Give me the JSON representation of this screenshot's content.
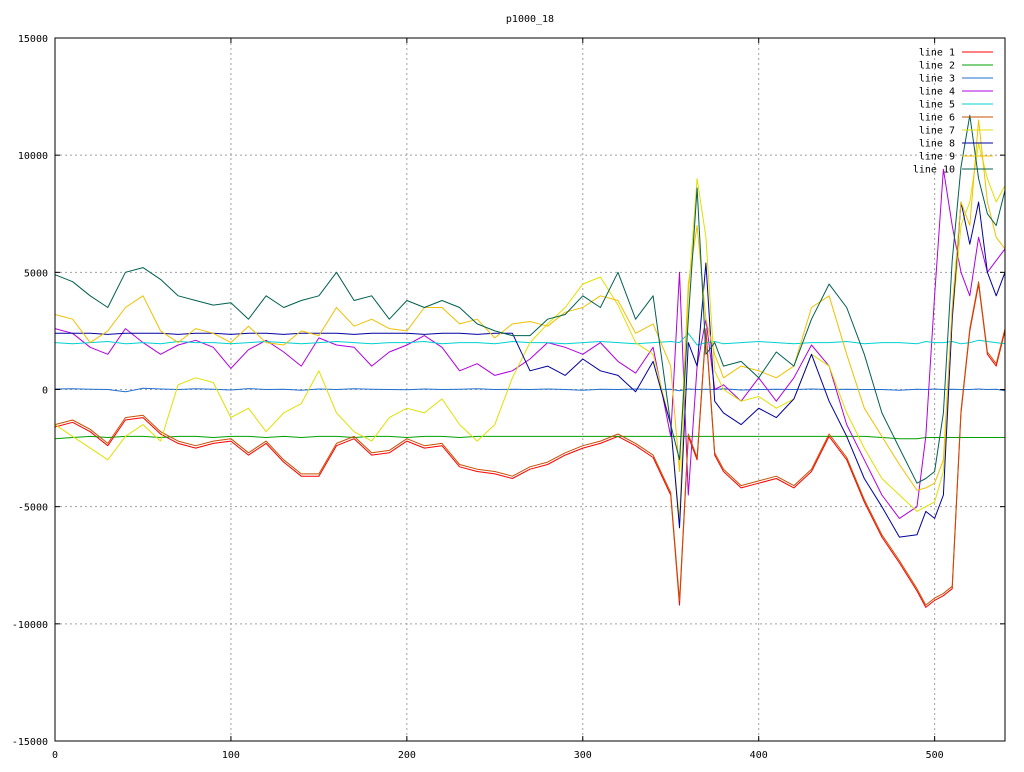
{
  "chart_data": {
    "type": "line",
    "title": "p1000_18",
    "xlabel": "",
    "ylabel": "",
    "xlim": [
      0,
      540
    ],
    "ylim": [
      -15000,
      15000
    ],
    "grid": true,
    "legend_position": "top-right",
    "x_ticks": [
      "0",
      "100",
      "200",
      "300",
      "400",
      "500"
    ],
    "x_tick_values": [
      0,
      100,
      200,
      300,
      400,
      500
    ],
    "y_ticks": [
      "-15000",
      "-10000",
      "-5000",
      "0",
      "5000",
      "10000",
      "15000"
    ],
    "y_tick_values": [
      -15000,
      -10000,
      -5000,
      0,
      5000,
      10000,
      15000
    ],
    "x": [
      0,
      10,
      20,
      30,
      40,
      50,
      60,
      70,
      80,
      90,
      100,
      110,
      120,
      130,
      140,
      150,
      160,
      170,
      180,
      190,
      200,
      210,
      220,
      230,
      240,
      250,
      260,
      270,
      280,
      290,
      300,
      310,
      320,
      330,
      340,
      350,
      355,
      360,
      365,
      370,
      375,
      380,
      390,
      400,
      410,
      420,
      430,
      440,
      450,
      460,
      470,
      480,
      490,
      495,
      500,
      505,
      510,
      515,
      520,
      525,
      530,
      535,
      540
    ],
    "series": [
      {
        "name": "line 1",
        "color": "#ff0000",
        "values": [
          -1600,
          -1400,
          -1800,
          -2400,
          -1300,
          -1200,
          -1900,
          -2300,
          -2500,
          -2300,
          -2200,
          -2800,
          -2300,
          -3100,
          -3700,
          -3700,
          -2400,
          -2100,
          -2800,
          -2700,
          -2200,
          -2500,
          -2400,
          -3300,
          -3500,
          -3600,
          -3800,
          -3400,
          -3200,
          -2800,
          -2500,
          -2300,
          -2000,
          -2400,
          -2900,
          -4500,
          -9200,
          -2000,
          -3000,
          2500,
          -2800,
          -3500,
          -4200,
          -4000,
          -3800,
          -4200,
          -3500,
          -2000,
          -3000,
          -4800,
          -6300,
          -7400,
          -8600,
          -9300,
          -9000,
          -8800,
          -8500,
          -1000,
          2500,
          4500,
          1500,
          1000,
          2500
        ]
      },
      {
        "name": "line 2",
        "color": "#00a000",
        "values": [
          -2100,
          -2050,
          -2000,
          -2050,
          -2000,
          -2000,
          -2050,
          -2000,
          -2000,
          -2050,
          -2000,
          -2000,
          -2050,
          -2000,
          -2050,
          -2000,
          -2000,
          -2050,
          -2000,
          -2000,
          -2050,
          -2000,
          -2000,
          -2050,
          -2000,
          -2000,
          -2000,
          -2000,
          -2000,
          -2000,
          -2000,
          -2000,
          -2000,
          -2000,
          -2000,
          -2000,
          -2000,
          -2000,
          -2000,
          -2000,
          -2000,
          -2000,
          -2000,
          -2000,
          -2000,
          -2000,
          -2000,
          -2000,
          -2000,
          -2000,
          -2050,
          -2100,
          -2100,
          -2050,
          -2050,
          -2050,
          -2050,
          -2050,
          -2050,
          -2050,
          -2050,
          -2050,
          -2050
        ]
      },
      {
        "name": "line 3",
        "color": "#1f6fd0",
        "values": [
          20,
          30,
          10,
          0,
          -100,
          50,
          20,
          0,
          30,
          10,
          -20,
          40,
          0,
          10,
          -30,
          20,
          0,
          30,
          10,
          0,
          -10,
          20,
          0,
          10,
          30,
          0,
          10,
          0,
          20,
          0,
          -30,
          10,
          0,
          20,
          0,
          10,
          -50,
          20,
          0,
          10,
          0,
          30,
          -20,
          0,
          10,
          0,
          20,
          0,
          10,
          0,
          0,
          -30,
          10,
          0,
          20,
          0,
          10,
          0,
          0,
          20,
          0,
          10,
          -50
        ]
      },
      {
        "name": "line 4",
        "color": "#b000e0",
        "values": [
          2600,
          2400,
          1800,
          1500,
          2600,
          2000,
          1500,
          1900,
          2100,
          1800,
          900,
          1700,
          2100,
          1600,
          1000,
          2200,
          1900,
          1800,
          1000,
          1600,
          1900,
          2300,
          1800,
          800,
          1100,
          600,
          800,
          1300,
          2000,
          1800,
          1500,
          2000,
          1200,
          700,
          1800,
          -2000,
          5000,
          -4500,
          1000,
          3000,
          0,
          200,
          -500,
          500,
          -500,
          500,
          1900,
          1000,
          -1500,
          -3000,
          -4500,
          -5500,
          -5000,
          -2000,
          4000,
          9400,
          7000,
          5000,
          4000,
          6500,
          5000,
          5500,
          6000
        ]
      },
      {
        "name": "line 5",
        "color": "#00d0d0",
        "values": [
          2000,
          1950,
          2000,
          2050,
          1950,
          2000,
          1950,
          2050,
          2000,
          2000,
          1950,
          2000,
          2050,
          2000,
          1950,
          2000,
          2050,
          2000,
          1950,
          2000,
          2000,
          2050,
          1950,
          2000,
          2000,
          1950,
          2050,
          2000,
          2000,
          1950,
          2000,
          2050,
          2000,
          1950,
          2000,
          2050,
          2000,
          2400,
          1900,
          2000,
          2050,
          1950,
          2000,
          2050,
          2000,
          1950,
          2000,
          2000,
          2050,
          1950,
          2000,
          2000,
          1950,
          2050,
          2000,
          2000,
          2050,
          1950,
          2000,
          2100,
          2050,
          2000,
          1950
        ]
      },
      {
        "name": "line 6",
        "color": "#c85000",
        "values": [
          -1500,
          -1300,
          -1700,
          -2300,
          -1200,
          -1100,
          -1800,
          -2200,
          -2400,
          -2200,
          -2100,
          -2700,
          -2200,
          -3000,
          -3600,
          -3600,
          -2300,
          -2000,
          -2700,
          -2600,
          -2100,
          -2400,
          -2300,
          -3200,
          -3400,
          -3500,
          -3700,
          -3300,
          -3100,
          -2700,
          -2400,
          -2200,
          -1900,
          -2300,
          -2800,
          -4400,
          -9000,
          -1900,
          -2900,
          2600,
          -2700,
          -3400,
          -4100,
          -3900,
          -3700,
          -4100,
          -3400,
          -1900,
          -2900,
          -4700,
          -6200,
          -7300,
          -8500,
          -9200,
          -8900,
          -8700,
          -8400,
          -900,
          2600,
          4600,
          1600,
          1100,
          2600
        ]
      },
      {
        "name": "line 7",
        "color": "#e0e000",
        "values": [
          -1500,
          -2000,
          -2500,
          -3000,
          -2000,
          -1500,
          -2200,
          200,
          500,
          300,
          -1200,
          -800,
          -1800,
          -1000,
          -600,
          800,
          -1000,
          -1800,
          -2200,
          -1200,
          -800,
          -1000,
          -400,
          -1500,
          -2200,
          -1500,
          500,
          2000,
          2800,
          3500,
          4500,
          4800,
          3600,
          2000,
          1500,
          -1500,
          -5600,
          4000,
          9000,
          6500,
          800,
          0,
          -500,
          -300,
          -800,
          -400,
          1500,
          1000,
          -1000,
          -2500,
          -3800,
          -4500,
          -5200,
          -5000,
          -4800,
          -3500,
          3000,
          7000,
          8000,
          10500,
          9000,
          8000,
          8700
        ]
      },
      {
        "name": "line 8",
        "color": "#0000a0",
        "values": [
          2400,
          2400,
          2400,
          2350,
          2400,
          2400,
          2400,
          2350,
          2400,
          2400,
          2350,
          2400,
          2400,
          2350,
          2400,
          2400,
          2400,
          2350,
          2400,
          2400,
          2400,
          2350,
          2400,
          2400,
          2350,
          2400,
          2400,
          800,
          1000,
          600,
          1300,
          800,
          600,
          -100,
          1200,
          -1500,
          -5900,
          2000,
          1000,
          5400,
          -500,
          -1000,
          -1500,
          -800,
          -1200,
          -400,
          1500,
          -500,
          -2000,
          -3800,
          -5000,
          -6300,
          -6200,
          -5200,
          -5500,
          -4500,
          3000,
          8000,
          6200,
          8000,
          5000,
          4000,
          5000
        ]
      },
      {
        "name": "line 9",
        "color": "#f0c000",
        "values": [
          3200,
          3000,
          2000,
          2500,
          3500,
          4000,
          2500,
          2000,
          2600,
          2400,
          2000,
          2700,
          2000,
          1900,
          2500,
          2300,
          3500,
          2700,
          3000,
          2600,
          2500,
          3500,
          3500,
          2800,
          3000,
          2200,
          2800,
          2900,
          2700,
          3300,
          3500,
          4000,
          3800,
          2400,
          2800,
          1000,
          -3500,
          4500,
          7000,
          3000,
          1500,
          500,
          1000,
          800,
          500,
          1000,
          3500,
          4000,
          1500,
          -800,
          -2000,
          -3200,
          -4300,
          -4200,
          -4000,
          -3000,
          3500,
          8000,
          7000,
          11500,
          8000,
          6500,
          6000
        ]
      },
      {
        "name": "line 10",
        "color": "#006050",
        "values": [
          4900,
          4600,
          4000,
          3500,
          5000,
          5200,
          4700,
          4000,
          3800,
          3600,
          3700,
          3000,
          4000,
          3500,
          3800,
          4000,
          5000,
          3800,
          4000,
          3000,
          3800,
          3500,
          3800,
          3500,
          2800,
          2500,
          2300,
          2300,
          3000,
          3200,
          4000,
          3500,
          5000,
          3000,
          4000,
          -1500,
          -3000,
          3000,
          8600,
          1500,
          2000,
          1000,
          1200,
          500,
          1600,
          1000,
          3000,
          4500,
          3500,
          1500,
          -1000,
          -2500,
          -4000,
          -3800,
          -3500,
          -1000,
          5500,
          9500,
          11700,
          9000,
          7500,
          7000,
          8500
        ]
      }
    ]
  }
}
